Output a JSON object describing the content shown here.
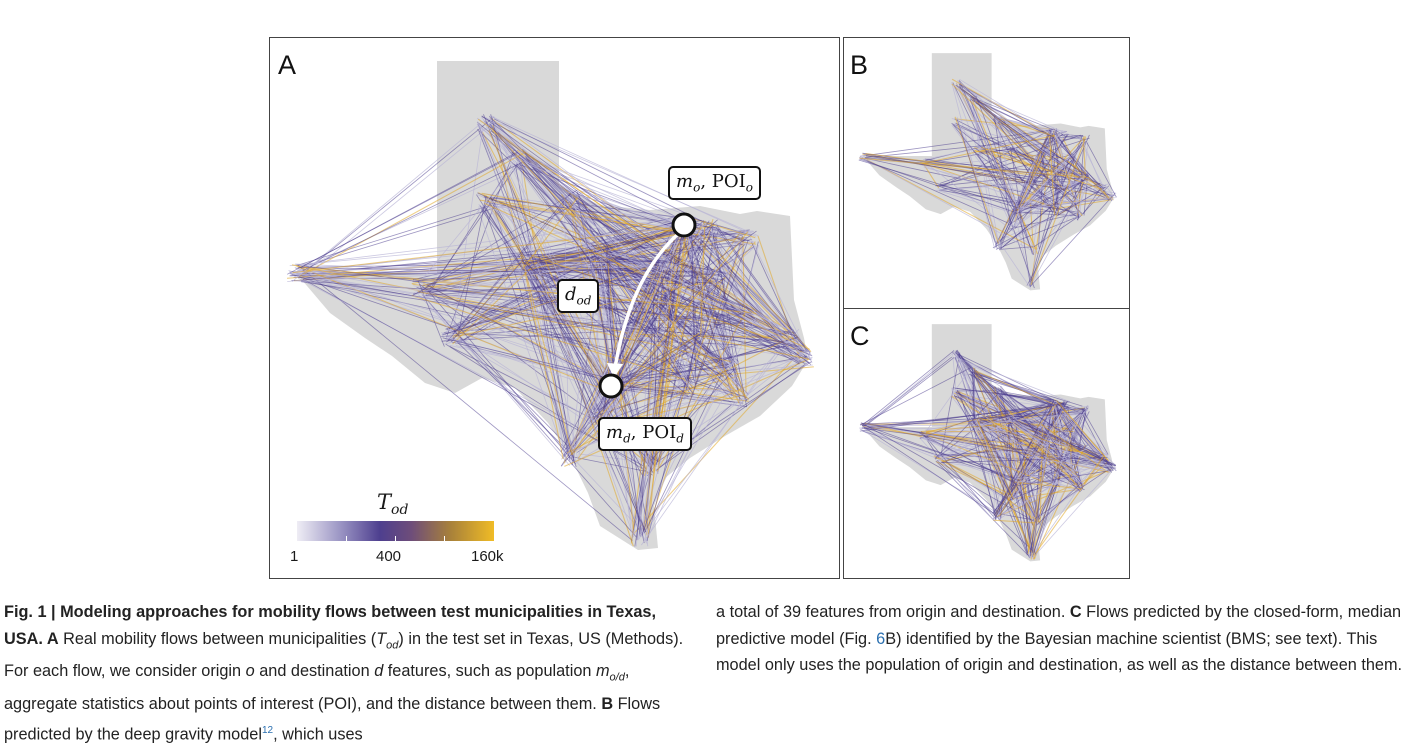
{
  "panels": {
    "a_label": "A",
    "b_label": "B",
    "c_label": "C"
  },
  "callouts": {
    "origin": {
      "var": "m",
      "sub": "o",
      "mid": ", POI",
      "sub2": "o"
    },
    "destination": {
      "var": "m",
      "sub": "d",
      "mid": ", POI",
      "sub2": "d"
    },
    "distance": {
      "var": "d",
      "sub": "od"
    }
  },
  "legend": {
    "title_var": "T",
    "title_sub": "od",
    "ticks": [
      "1",
      "400",
      "160k"
    ]
  },
  "colors": {
    "map_fill": "#d9d9d9",
    "flow_low": "#b8b3d6",
    "flow_mid": "#4e3f8f",
    "flow_high": "#e0a72a",
    "link": "#2a6fb0"
  },
  "caption": {
    "fig_label": "Fig. 1 | ",
    "fig_title": "Modeling approaches for mobility flows between test municipalities in Texas, USA.",
    "part_a_label": " A",
    "part_a_text_1": " Real mobility flows between municipalities (",
    "part_a_math_var": "T",
    "part_a_math_sub": "od",
    "part_a_text_2": ") in the test set in Texas, US (Methods). For each flow, we consider origin ",
    "origin_var": "o",
    "part_a_text_3": " and destination ",
    "dest_var": "d",
    "part_a_text_4": " features, such as population ",
    "pop_var": "m",
    "pop_sub": "o/d",
    "part_a_text_5": ", aggregate statistics about points of interest (POI), and the distance between them. ",
    "part_b_label": "B",
    "part_b_text_1": " Flows predicted by the deep gravity model",
    "part_b_ref": "12",
    "part_b_text_2": ", which uses",
    "right_text_1": "a total of 39 features from origin and destination. ",
    "part_c_label": "C",
    "right_text_2": " Flows predicted by the closed-form, median predictive model (Fig. ",
    "fig_ref": "6",
    "right_text_3": "B) identified by the Bayesian machine scientist (BMS; see text). This model only uses the population of origin and destination, as well as the distance between them."
  }
}
